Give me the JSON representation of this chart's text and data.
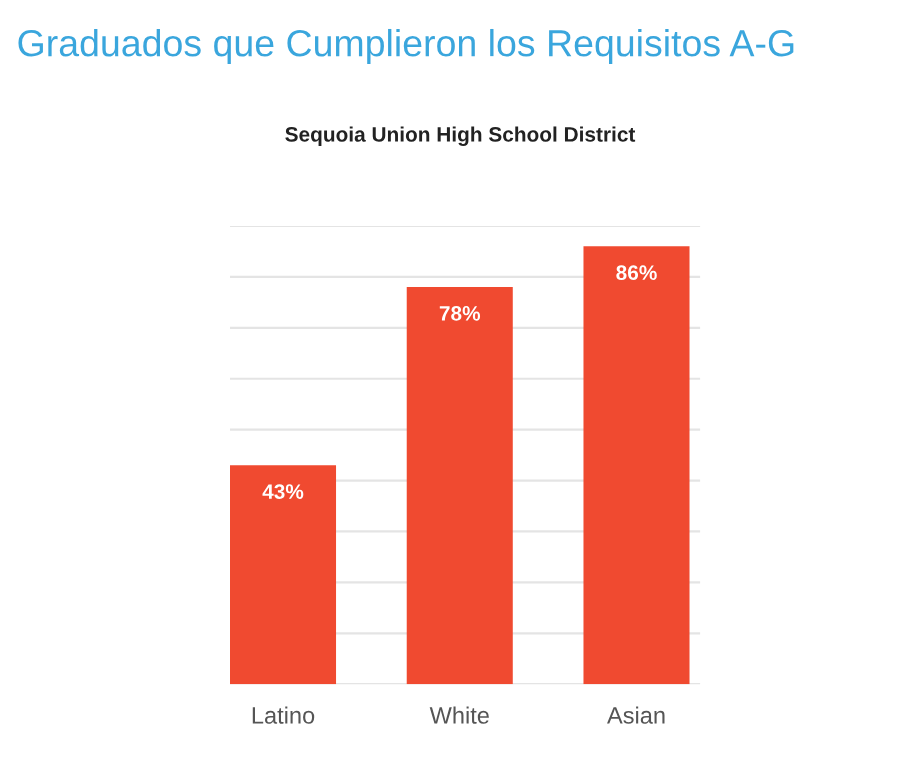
{
  "chart_data": {
    "type": "bar",
    "title": "Graduados que Cumplieron los Requisitos A-G",
    "subtitle": "Sequoia Union High School District",
    "categories": [
      "Latino",
      "White",
      "Asian"
    ],
    "values": [
      43,
      78,
      86
    ],
    "value_labels": [
      "43%",
      "78%",
      "86%"
    ],
    "color": "#f04a30",
    "ylim": [
      0,
      90
    ],
    "yticks": [
      {
        "value": 0,
        "label": null
      },
      {
        "value": 10,
        "label": null
      },
      {
        "value": 20,
        "label": null
      },
      {
        "value": 30,
        "label": null
      },
      {
        "value": 40,
        "label": null
      },
      {
        "value": 50,
        "label": null
      },
      {
        "value": 60,
        "label": null
      },
      {
        "value": 70,
        "label": null
      },
      {
        "value": 80,
        "label": null
      },
      {
        "value": 90,
        "label": null
      }
    ],
    "grid": "y",
    "tick_labels": "x"
  }
}
